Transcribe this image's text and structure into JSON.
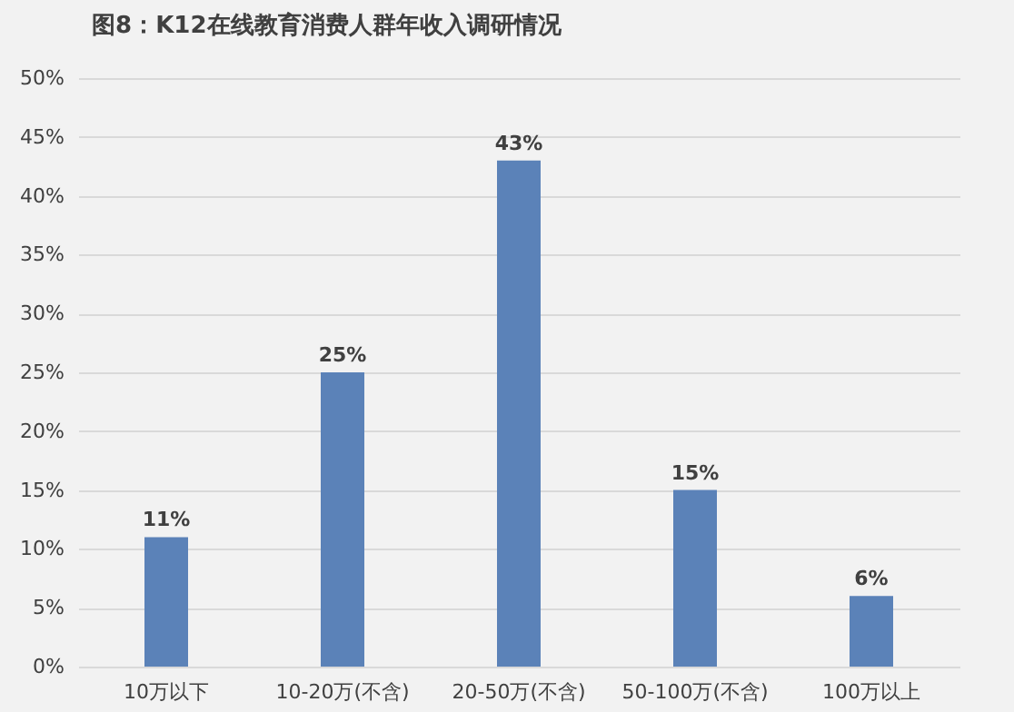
{
  "chart_data": {
    "type": "bar",
    "title": "图8：K12在线教育消费人群年收入调研情况",
    "categories": [
      "10万以下",
      "10-20万(不含)",
      "20-50万(不含)",
      "50-100万(不含)",
      "100万以上"
    ],
    "values": [
      11,
      25,
      43,
      15,
      6
    ],
    "value_labels": [
      "11%",
      "25%",
      "43%",
      "15%",
      "6%"
    ],
    "color": "#5b82b8",
    "ylim": [
      0,
      50
    ],
    "yticks": [
      {
        "value": 0,
        "label": "0%"
      },
      {
        "value": 5,
        "label": "5%"
      },
      {
        "value": 10,
        "label": "10%"
      },
      {
        "value": 15,
        "label": "15%"
      },
      {
        "value": 20,
        "label": "20%"
      },
      {
        "value": 25,
        "label": "25%"
      },
      {
        "value": 30,
        "label": "30%"
      },
      {
        "value": 35,
        "label": "35%"
      },
      {
        "value": 40,
        "label": "40%"
      },
      {
        "value": 45,
        "label": "45%"
      },
      {
        "value": 50,
        "label": "50%"
      }
    ],
    "grid": "y"
  }
}
